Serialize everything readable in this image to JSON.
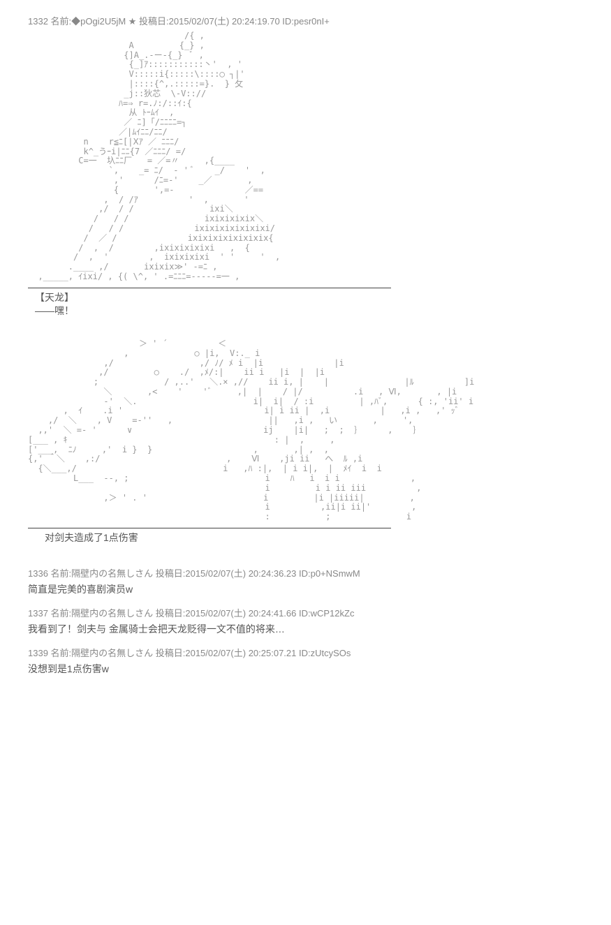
{
  "post1": {
    "header": "1332 名前:◆pOgi2U5jM ★ 投稿日:2015/02/07(土) 20:24:19.70 ID:pesr0nI+",
    "aa1": "                               /{ ,\n                    A         {_} ,\n                   {]A_.-ー-{_}  ﾞ ,\n                    {_]ｱ:::::::::::丶'  , '\n                    V:::::i{:::::\\::::◯ ┐|'\n                    |::::{^,.:::::=}.  } 攵\n                   _j::狄芯  \\-V:://\n                  ﾊ=⇒ r=.ﾉ:/::ｲ:{\n                    从 ﾄｰﾑｲ  ,\n                   ／ ﾆ]「/ﾆﾆﾆﾆ=┐\n                  ／|ﾑｲﾆﾆ/ﾆﾆ/\n           n    r≦ﾆ[|Ⅹｱ ／ ﾆﾆﾆ/\n           k^_うｰi|ﾆﾆ{7 ／ﾆﾆﾆ/ =/\n          C=一  圦ﾆﾆ厂   = ／=〃     ,{____\n                `,    _= ﾆ/  - ' ﾞ    _/    '  ,\n                 ,'      /ﾆ=-'    _／       ,\n                 {       ',=-              ／==\n               ,  / /ｱ          '  ,       '\n              ,/  / /               ixi＼\n             /   / /               ixixixixix＼\n            /   / /              ixixixixixixixi/\n           /  ／ /              ixixixixixixixix{\n          /  ,  /        ,ixixixixixi   ,  {\n         /  ,  '        ,  ixixixixi  ' '     '  ,\n        .____ ,/       ixixix≫' -=ﾆ ,\n  ,_____, ｲixi/ , {( \\^, ' .=ﾆﾆﾆ=-----=一 ,",
    "char1": "【天龙】",
    "line1": "——嘿！",
    "aa2": "                      ＞ ' ´          ＜\n                   ,             ○ |i,  V:._ i\n               ,/                 ,/ ﾉ/ ﾒ i  |i              |i\n              ,/         ○    ./  ,ﾒ/:|    ii i   |i  |  |i\n             ;             / ,..'   ＼.× ,//    ii i, |    |               |ﾙ          ]i\n               ＼       ,<    '    'ﾞ     ,|  |    / |/          .i   , Ⅵ,       , |i\n               -'  ＼.                       i|  i|  / :i         | ,ﾊﾞ,      { :, 'ii' i\n       ,  ｲ    .i '                            i| i ii |  ,i          |   ,i ,   ,' ｯﾞ\n    ,/  ＼    , V    =-''   ,                   ||   ,i ,   い       ,     ',\n  ,,'  ＼ =- '      ∨                          ij    |i|   ;  ;  ｝     ,    ｝\n[___ , ｷ                                         : |  ,     ,\n['___,  ﾆﾉ     ,'  i }  }                    ,       ,| ,  ,\n{,' ＾＼    ,:/                         ,    Ⅵ    ,ji ii   へ  ﾙ ,i\n  {＼___,/                             i   ,ﾊ :|,  | i i|,  |  ﾒｲ  i  i\n         L___  --, ;                           i    ﾊ   i  i i              ,\n                                               i         i i ii iii          ,\n               ,＞ ' . '                       i         |i |iiiii|         ,\n                                               i          ,ii|i ii|'        ,\n                                               :           ;               i",
    "line2": "　对剑夫造成了1点伤害"
  },
  "replies": [
    {
      "header": "1336 名前:隔壁内の名無しさん 投稿日:2015/02/07(土) 20:24:36.23 ID:p0+NSmwM",
      "body": "简直是完美的喜剧演员w"
    },
    {
      "header": "1337 名前:隔壁内の名無しさん 投稿日:2015/02/07(土) 20:24:41.66 ID:wCP12kZc",
      "body": "我看到了！剑夫与 金属骑士会把天龙贬得一文不值的将来…"
    },
    {
      "header": "1339 名前:隔壁内の名無しさん 投稿日:2015/02/07(土) 20:25:07.21 ID:zUtcySOs",
      "body": "没想到是1点伤害w"
    }
  ]
}
